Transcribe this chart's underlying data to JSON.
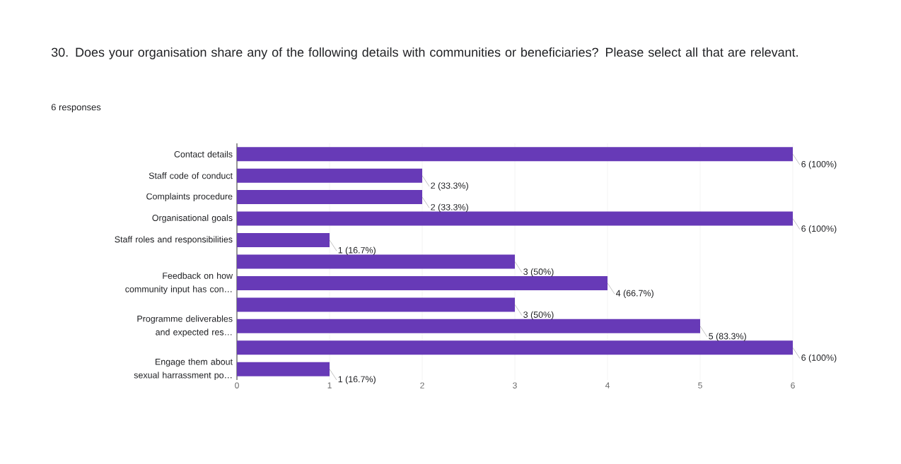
{
  "chart_data": {
    "type": "bar",
    "orientation": "horizontal",
    "title": "30. Does your organisation share any of the following details with communities or beneficiaries? Please select all that are relevant.",
    "subtitle": "6 responses",
    "categories": [
      "Contact details",
      "Staff code of conduct",
      "Complaints procedure",
      "Organisational goals",
      "Staff roles and responsibilities",
      null,
      "Feedback on how community input has con…",
      null,
      "Programme deliverables and expected res…",
      null,
      "Engage them about sexual harrassment po…"
    ],
    "values": [
      6,
      2,
      2,
      6,
      1,
      3,
      4,
      3,
      5,
      6,
      1
    ],
    "value_labels": [
      "6 (100%)",
      "2 (33.3%)",
      "2 (33.3%)",
      "6 (100%)",
      "1 (16.7%)",
      "3 (50%)",
      "4 (66.7%)",
      "3 (50%)",
      "5 (83.3%)",
      "6 (100%)",
      "1 (16.7%)"
    ],
    "color": "#673ab7",
    "xlim": [
      0,
      6
    ],
    "xticks": [
      0,
      1,
      2,
      3,
      4,
      5,
      6
    ],
    "grid": "x"
  }
}
